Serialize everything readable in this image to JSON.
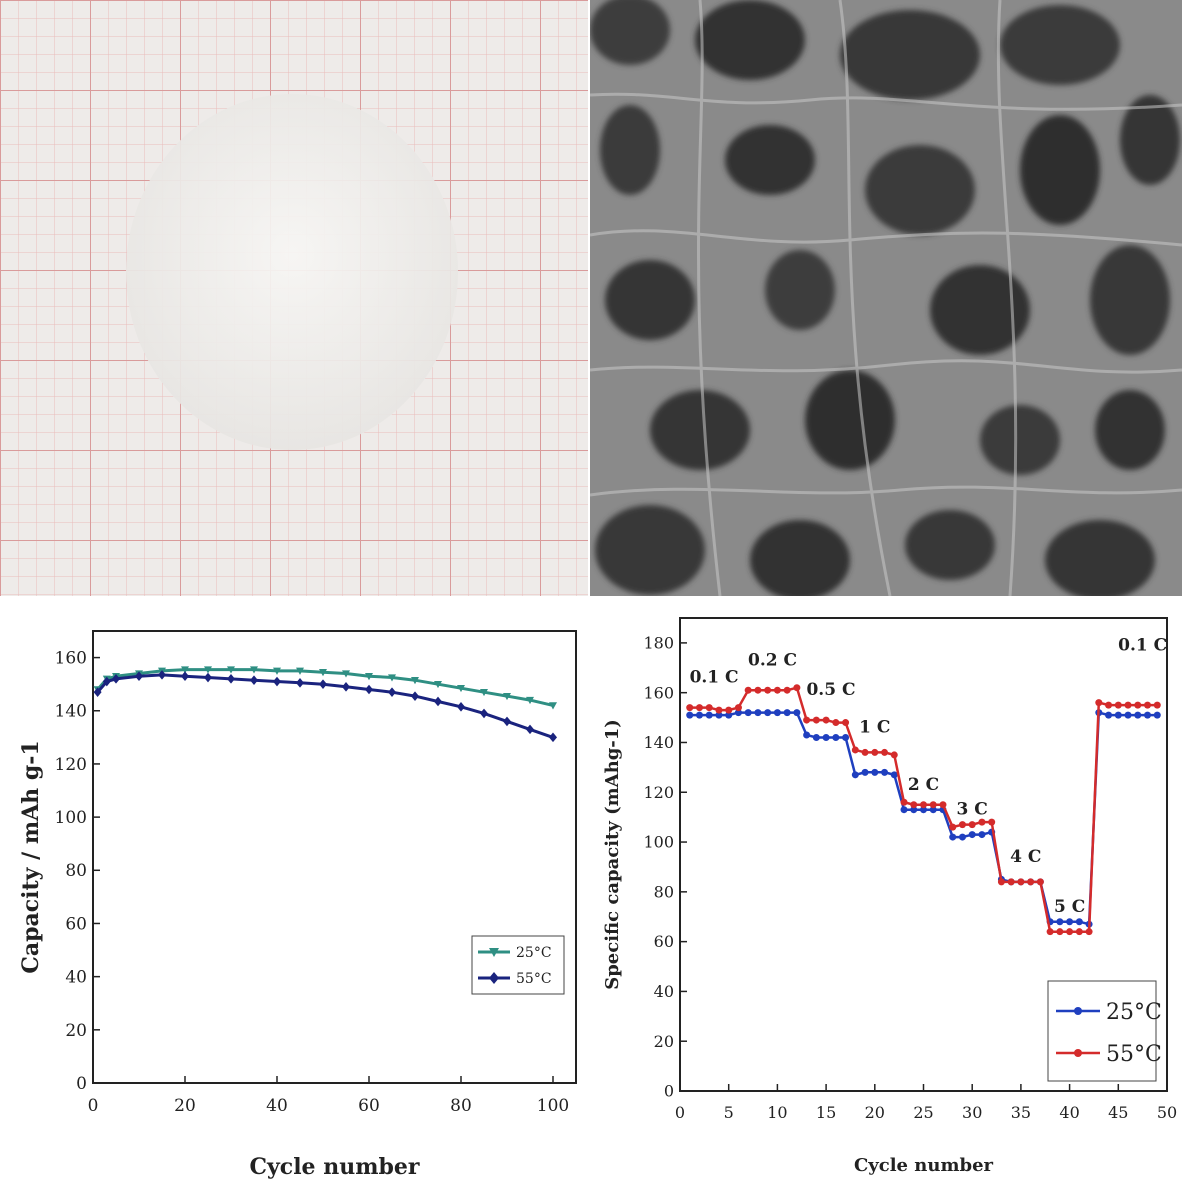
{
  "chart_data": [
    {
      "type": "line",
      "panel": "bottom-left",
      "title": "",
      "xlabel": "Cycle number",
      "ylabel": "Capacity / mAh g-1",
      "xlim": [
        0,
        105
      ],
      "ylim": [
        0,
        170
      ],
      "xticks": [
        0,
        20,
        40,
        60,
        80,
        100
      ],
      "yticks": [
        0,
        20,
        40,
        60,
        80,
        100,
        120,
        140,
        160
      ],
      "legend_position": "right-middle",
      "series": [
        {
          "name": "25°C",
          "color": "#2f8f83",
          "marker": "triangle-down",
          "x": [
            1,
            3,
            5,
            10,
            15,
            20,
            25,
            30,
            35,
            40,
            45,
            50,
            55,
            60,
            65,
            70,
            75,
            80,
            85,
            90,
            95,
            100
          ],
          "y": [
            148,
            152,
            153,
            154,
            155,
            155.5,
            155.5,
            155.5,
            155.5,
            155,
            155,
            154.5,
            154,
            153,
            152.5,
            151.5,
            150,
            148.5,
            147,
            145.5,
            144,
            142
          ]
        },
        {
          "name": "55°C",
          "color": "#1a237e",
          "marker": "diamond",
          "x": [
            1,
            3,
            5,
            10,
            15,
            20,
            25,
            30,
            35,
            40,
            45,
            50,
            55,
            60,
            65,
            70,
            75,
            80,
            85,
            90,
            95,
            100
          ],
          "y": [
            147,
            151,
            152,
            153,
            153.5,
            153,
            152.5,
            152,
            151.5,
            151,
            150.5,
            150,
            149,
            148,
            147,
            145.5,
            143.5,
            141.5,
            139,
            136,
            133,
            130
          ]
        }
      ]
    },
    {
      "type": "line",
      "panel": "bottom-right",
      "title": "",
      "xlabel": "Cycle number",
      "ylabel": "Specific capacity (mAhg-1)",
      "xlim": [
        0,
        50
      ],
      "ylim": [
        0,
        190
      ],
      "xticks": [
        0,
        5,
        10,
        15,
        20,
        25,
        30,
        35,
        40,
        45,
        50
      ],
      "yticks": [
        0,
        20,
        40,
        60,
        80,
        100,
        120,
        140,
        160,
        180
      ],
      "legend_position": "bottom-right",
      "rate_labels": [
        {
          "text": "0.1 C",
          "x": 3.5,
          "y": 164
        },
        {
          "text": "0.2 C",
          "x": 9.5,
          "y": 171
        },
        {
          "text": "0.5 C",
          "x": 15.5,
          "y": 159
        },
        {
          "text": "1 C",
          "x": 20,
          "y": 144
        },
        {
          "text": "2 C",
          "x": 25,
          "y": 121
        },
        {
          "text": "3 C",
          "x": 30,
          "y": 111
        },
        {
          "text": "4 C",
          "x": 35.5,
          "y": 92
        },
        {
          "text": "5 C",
          "x": 40,
          "y": 72
        },
        {
          "text": "0.1 C",
          "x": 47.5,
          "y": 177
        }
      ],
      "series": [
        {
          "name": "25°C",
          "color": "#1f3fbf",
          "marker": "circle",
          "x": [
            1,
            2,
            3,
            4,
            5,
            6,
            7,
            8,
            9,
            10,
            11,
            12,
            13,
            14,
            15,
            16,
            17,
            18,
            19,
            20,
            21,
            22,
            23,
            24,
            25,
            26,
            27,
            28,
            29,
            30,
            31,
            32,
            33,
            34,
            35,
            36,
            37,
            38,
            39,
            40,
            41,
            42,
            43,
            44,
            45,
            46,
            47,
            48,
            49
          ],
          "y": [
            151,
            151,
            151,
            151,
            151,
            152,
            152,
            152,
            152,
            152,
            152,
            152,
            143,
            142,
            142,
            142,
            142,
            127,
            128,
            128,
            128,
            127,
            113,
            113,
            113,
            113,
            113,
            102,
            102,
            103,
            103,
            104,
            85,
            84,
            84,
            84,
            84,
            68,
            68,
            68,
            68,
            67,
            152,
            151,
            151,
            151,
            151,
            151,
            151
          ]
        },
        {
          "name": "55°C",
          "color": "#d42b2b",
          "marker": "circle",
          "x": [
            1,
            2,
            3,
            4,
            5,
            6,
            7,
            8,
            9,
            10,
            11,
            12,
            13,
            14,
            15,
            16,
            17,
            18,
            19,
            20,
            21,
            22,
            23,
            24,
            25,
            26,
            27,
            28,
            29,
            30,
            31,
            32,
            33,
            34,
            35,
            36,
            37,
            38,
            39,
            40,
            41,
            42,
            43,
            44,
            45,
            46,
            47,
            48,
            49
          ],
          "y": [
            154,
            154,
            154,
            153,
            153,
            154,
            161,
            161,
            161,
            161,
            161,
            162,
            149,
            149,
            149,
            148,
            148,
            137,
            136,
            136,
            136,
            135,
            116,
            115,
            115,
            115,
            115,
            106,
            107,
            107,
            108,
            108,
            84,
            84,
            84,
            84,
            84,
            64,
            64,
            64,
            64,
            64,
            156,
            155,
            155,
            155,
            155,
            155,
            155
          ]
        }
      ]
    }
  ]
}
